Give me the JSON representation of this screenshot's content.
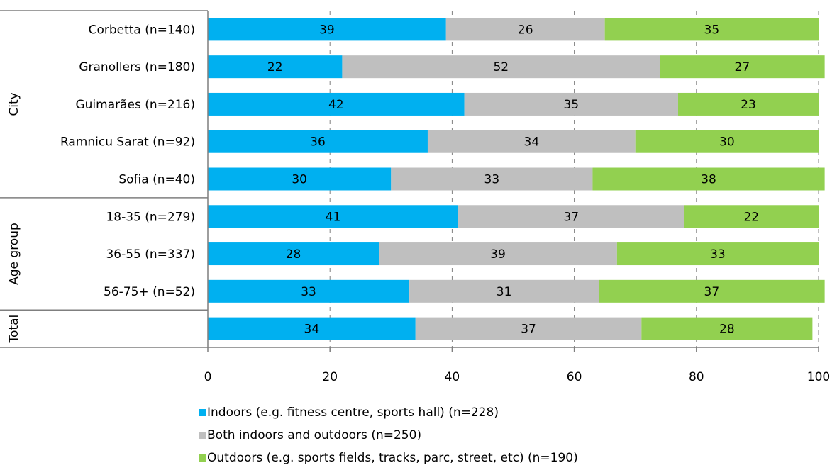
{
  "chart_data": {
    "type": "bar",
    "orientation": "horizontal",
    "stacked": true,
    "groups": [
      {
        "label": "City",
        "categories": [
          "Corbetta (n=140)",
          "Granollers (n=180)",
          "Guimarães (n=216)",
          "Ramnicu Sarat (n=92)",
          "Sofia (n=40)"
        ]
      },
      {
        "label": "Age group",
        "categories": [
          "18-35 (n=279)",
          "36-55 (n=337)",
          "56-75+ (n=52)"
        ]
      },
      {
        "label": "Total",
        "categories": [
          ""
        ]
      }
    ],
    "categories": [
      "Corbetta (n=140)",
      "Granollers (n=180)",
      "Guimarães (n=216)",
      "Ramnicu Sarat (n=92)",
      "Sofia (n=40)",
      "18-35 (n=279)",
      "36-55 (n=337)",
      "56-75+ (n=52)",
      ""
    ],
    "series": [
      {
        "name": "Indoors (e.g. fitness centre, sports hall) (n=228)",
        "color": "#00b0f0",
        "values": [
          39,
          22,
          42,
          36,
          30,
          41,
          28,
          33,
          34
        ]
      },
      {
        "name": "Both indoors and outdoors (n=250)",
        "color": "#bfbfbf",
        "values": [
          26,
          52,
          35,
          34,
          33,
          37,
          39,
          31,
          37
        ]
      },
      {
        "name": "Outdoors (e.g. sports fields, tracks, parc, street, etc) (n=190)",
        "color": "#92d050",
        "values": [
          35,
          27,
          23,
          30,
          38,
          22,
          33,
          37,
          28
        ]
      }
    ],
    "xlim": [
      0,
      100
    ],
    "xticks": [
      "0",
      "20",
      "40",
      "60",
      "80",
      "100"
    ],
    "grid": "vertical dashed",
    "legend": "bottom",
    "title": "",
    "xlabel": "",
    "ylabel": ""
  }
}
